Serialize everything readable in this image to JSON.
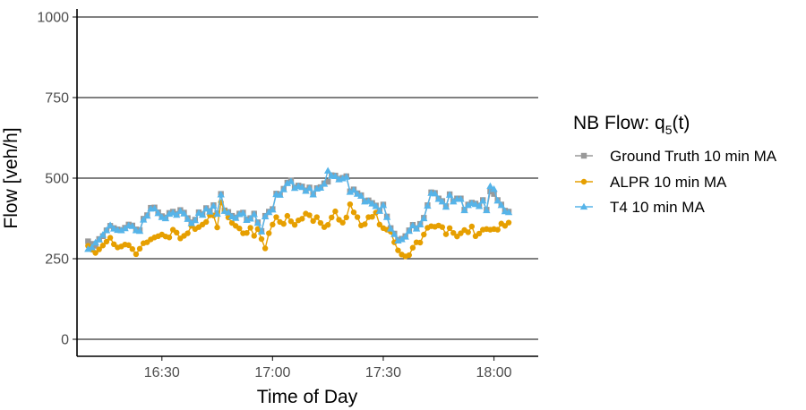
{
  "chart_data": {
    "type": "line",
    "title": "",
    "xlabel": "Time of Day",
    "ylabel": "Flow [veh/h]",
    "ylim": [
      0,
      1000
    ],
    "yticks": [
      0,
      250,
      500,
      750,
      1000
    ],
    "xlim": [
      "16:07",
      "18:12"
    ],
    "xticks": [
      "16:30",
      "17:00",
      "17:30",
      "18:00"
    ],
    "grid": {
      "horizontal": true,
      "vertical": false
    },
    "legend": {
      "title_main": "NB Flow: q",
      "title_sub": "5",
      "title_tail": "(t)",
      "position": "right"
    },
    "x": [
      "16:10",
      "16:11",
      "16:12",
      "16:13",
      "16:14",
      "16:15",
      "16:16",
      "16:17",
      "16:18",
      "16:19",
      "16:20",
      "16:21",
      "16:22",
      "16:23",
      "16:24",
      "16:25",
      "16:26",
      "16:27",
      "16:28",
      "16:29",
      "16:30",
      "16:31",
      "16:32",
      "16:33",
      "16:34",
      "16:35",
      "16:36",
      "16:37",
      "16:38",
      "16:39",
      "16:40",
      "16:41",
      "16:42",
      "16:43",
      "16:44",
      "16:45",
      "16:46",
      "16:47",
      "16:48",
      "16:49",
      "16:50",
      "16:51",
      "16:52",
      "16:53",
      "16:54",
      "16:55",
      "16:56",
      "16:57",
      "16:58",
      "16:59",
      "17:00",
      "17:01",
      "17:02",
      "17:03",
      "17:04",
      "17:05",
      "17:06",
      "17:07",
      "17:08",
      "17:09",
      "17:10",
      "17:11",
      "17:12",
      "17:13",
      "17:14",
      "17:15",
      "17:16",
      "17:17",
      "17:18",
      "17:19",
      "17:20",
      "17:21",
      "17:22",
      "17:23",
      "17:24",
      "17:25",
      "17:26",
      "17:27",
      "17:28",
      "17:29",
      "17:30",
      "17:31",
      "17:32",
      "17:33",
      "17:34",
      "17:35",
      "17:36",
      "17:37",
      "17:38",
      "17:39",
      "17:40",
      "17:41",
      "17:42",
      "17:43",
      "17:44",
      "17:45",
      "17:46",
      "17:47",
      "17:48",
      "17:49",
      "17:50",
      "17:51",
      "17:52",
      "17:53",
      "17:54",
      "17:55",
      "17:56",
      "17:57",
      "17:58",
      "17:59",
      "18:00",
      "18:01",
      "18:02",
      "18:03",
      "18:04"
    ],
    "series": [
      {
        "name": "Ground Truth 10 min MA",
        "color": "#999999",
        "marker": "square",
        "values": [
          304,
          296,
          290,
          311,
          320,
          338,
          352,
          345,
          341,
          338,
          346,
          356,
          353,
          341,
          339,
          374,
          385,
          408,
          409,
          394,
          382,
          378,
          392,
          396,
          389,
          401,
          393,
          376,
          363,
          371,
          394,
          388,
          407,
          398,
          416,
          391,
          451,
          400,
          395,
          383,
          378,
          390,
          393,
          372,
          376,
          390,
          363,
          336,
          383,
          396,
          404,
          452,
          450,
          467,
          486,
          492,
          471,
          477,
          474,
          462,
          471,
          451,
          469,
          472,
          484,
          489,
          509,
          508,
          498,
          501,
          506,
          459,
          465,
          453,
          447,
          429,
          431,
          423,
          415,
          400,
          418,
          381,
          345,
          328,
          308,
          312,
          320,
          338,
          355,
          345,
          358,
          377,
          416,
          456,
          454,
          437,
          429,
          413,
          450,
          429,
          437,
          437,
          402,
          418,
          424,
          421,
          415,
          432,
          402,
          459,
          451,
          432,
          418,
          399,
          396
        ]
      },
      {
        "name": "ALPR 10 min MA",
        "color": "#e69f00",
        "marker": "circle",
        "values": [
          290,
          278,
          268,
          279,
          291,
          303,
          315,
          295,
          285,
          288,
          294,
          292,
          280,
          264,
          281,
          298,
          301,
          310,
          316,
          320,
          325,
          319,
          316,
          340,
          331,
          313,
          321,
          329,
          352,
          342,
          348,
          356,
          364,
          385,
          384,
          347,
          425,
          398,
          378,
          361,
          352,
          344,
          329,
          330,
          346,
          321,
          342,
          311,
          282,
          329,
          356,
          379,
          364,
          358,
          383,
          366,
          355,
          369,
          374,
          390,
          385,
          367,
          379,
          361,
          348,
          355,
          378,
          397,
          371,
          362,
          378,
          419,
          394,
          379,
          353,
          357,
          379,
          380,
          393,
          356,
          345,
          340,
          334,
          301,
          276,
          263,
          257,
          261,
          284,
          301,
          300,
          325,
          346,
          351,
          349,
          353,
          348,
          326,
          345,
          330,
          319,
          329,
          339,
          332,
          350,
          320,
          328,
          340,
          342,
          340,
          342,
          340,
          359,
          352,
          362
        ]
      },
      {
        "name": "T4 10 min MA",
        "color": "#56b4e9",
        "marker": "triangle",
        "values": [
          280,
          285,
          300,
          309,
          324,
          338,
          354,
          343,
          339,
          338,
          344,
          353,
          351,
          338,
          336,
          371,
          383,
          405,
          406,
          391,
          379,
          375,
          389,
          393,
          386,
          398,
          390,
          373,
          360,
          369,
          392,
          386,
          405,
          396,
          414,
          389,
          449,
          398,
          393,
          381,
          376,
          388,
          391,
          370,
          374,
          388,
          361,
          334,
          381,
          394,
          402,
          450,
          448,
          465,
          484,
          490,
          469,
          475,
          472,
          460,
          469,
          449,
          467,
          470,
          482,
          523,
          507,
          506,
          496,
          499,
          504,
          457,
          463,
          451,
          445,
          427,
          429,
          421,
          413,
          398,
          416,
          379,
          343,
          326,
          306,
          310,
          318,
          336,
          353,
          343,
          356,
          375,
          414,
          454,
          452,
          435,
          427,
          411,
          448,
          427,
          435,
          435,
          400,
          416,
          422,
          419,
          413,
          430,
          400,
          475,
          466,
          430,
          416,
          397,
          394
        ]
      }
    ]
  }
}
